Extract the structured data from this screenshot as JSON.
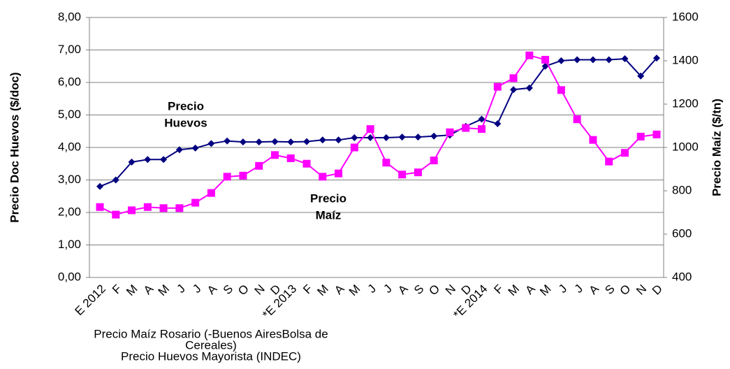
{
  "chart_data": {
    "type": "line",
    "categories": [
      "E 2012",
      "F",
      "M",
      "A",
      "M",
      "J",
      "J",
      "A",
      "S",
      "O",
      "N",
      "D",
      "*E 2013",
      "F",
      "M",
      "A",
      "M",
      "J",
      "J",
      "A",
      "S",
      "O",
      "N",
      "D",
      "*E 2014",
      "F",
      "M",
      "A",
      "M",
      "J",
      "J",
      "A",
      "S",
      "O",
      "N",
      "D"
    ],
    "series": [
      {
        "color": "#000080",
        "marker": "diamond",
        "axis": "y",
        "values": [
          2.8,
          3.0,
          3.55,
          3.63,
          3.63,
          3.93,
          3.98,
          4.12,
          4.2,
          4.17,
          4.17,
          4.18,
          4.17,
          4.18,
          4.23,
          4.23,
          4.3,
          4.3,
          4.3,
          4.32,
          4.32,
          4.35,
          4.38,
          4.65,
          4.87,
          4.73,
          5.78,
          5.83,
          6.5,
          6.67,
          6.7,
          6.7,
          6.7,
          6.73,
          6.2,
          6.75
        ]
      },
      {
        "color": "#ff00ff",
        "marker": "square",
        "axis": "y2",
        "values": [
          725,
          690,
          710,
          725,
          720,
          720,
          745,
          790,
          865,
          870,
          915,
          965,
          950,
          925,
          865,
          880,
          1000,
          1085,
          930,
          875,
          885,
          940,
          1070,
          1090,
          1085,
          1280,
          1320,
          1425,
          1405,
          1265,
          1130,
          1035,
          935,
          975,
          1050,
          1060
        ]
      }
    ],
    "ylabel": "Precio Doc Huevos ($/doc)",
    "y2label": "Precio Maíz ($/tn)",
    "ylim": [
      0,
      8
    ],
    "yticks": [
      {
        "value": 0,
        "label": "0,00"
      },
      {
        "value": 1,
        "label": "1,00"
      },
      {
        "value": 2,
        "label": "2,00"
      },
      {
        "value": 3,
        "label": "3,00"
      },
      {
        "value": 4,
        "label": "4,00"
      },
      {
        "value": 5,
        "label": "5,00"
      },
      {
        "value": 6,
        "label": "6,00"
      },
      {
        "value": 7,
        "label": "7,00"
      },
      {
        "value": 8,
        "label": "8,00"
      }
    ],
    "y2lim": [
      400,
      1600
    ],
    "y2ticks": [
      400,
      600,
      800,
      1000,
      1200,
      1400,
      1600
    ],
    "grid": true,
    "annotations": [
      {
        "lines": [
          "Precio",
          "Huevos"
        ]
      },
      {
        "lines": [
          "Precio",
          "Maíz"
        ]
      }
    ],
    "source": [
      "Precio Maíz Rosario (-Buenos AiresBolsa de",
      "Cereales)",
      "Precio Huevos Mayorista (INDEC)"
    ]
  }
}
